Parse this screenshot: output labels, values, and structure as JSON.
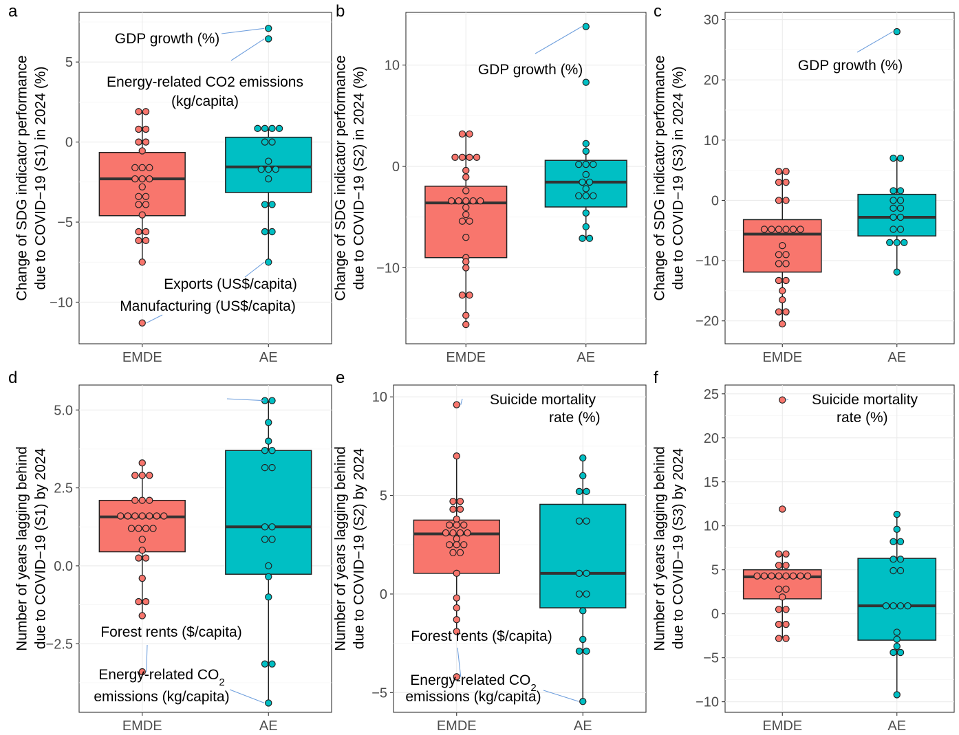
{
  "colors": {
    "EMDE": "#f8766d",
    "AE": "#00bfc4"
  },
  "chart_data": [
    {
      "panel": "a",
      "type": "box",
      "categories": [
        "EMDE",
        "AE"
      ],
      "ylabel": [
        "Change of SDG indicator performance",
        "due to COVID−19 (S1) in 2024 (%)"
      ],
      "ylim": [
        -12.6,
        8.1
      ],
      "yticks": [
        -10,
        -5,
        0,
        5
      ],
      "ytick_labels": [
        "−10",
        "−5",
        "0",
        "5"
      ],
      "boxes": [
        {
          "group": "EMDE",
          "q1": -4.6,
          "median": -2.3,
          "q3": -0.65,
          "whisker_low": -7.5,
          "whisker_high": 1.9
        },
        {
          "group": "AE",
          "q1": -3.15,
          "median": -1.55,
          "q3": 0.3,
          "whisker_low": -7.5,
          "whisker_high": 0.85
        }
      ],
      "points": {
        "EMDE": [
          1.9,
          1.9,
          0.8,
          0.8,
          0,
          0,
          -0.55,
          -1.6,
          -1.6,
          -1.6,
          -2.3,
          -2.3,
          -2.3,
          -2.8,
          -3.4,
          -3.4,
          -3.9,
          -3.9,
          -4.55,
          -5.6,
          -5.6,
          -6.15,
          -6.15,
          -7.5,
          -11.3
        ],
        "AE": [
          7.1,
          6.45,
          0.85,
          0.85,
          0.85,
          0.85,
          0,
          0,
          -1.2,
          -1.7,
          -1.7,
          -1.7,
          -2.3,
          -3.9,
          -3.9,
          -5.6,
          -5.6,
          -7.5
        ]
      },
      "annotations": [
        {
          "text": "GDP growth (%)",
          "group": "AE",
          "y": 7.1
        },
        {
          "text": "Energy-related CO2 emissions",
          "text2": "(kg/capita)",
          "group": "AE",
          "y": 6.45
        },
        {
          "text": "Exports (US$/capita)",
          "group": "AE",
          "y": -7.5
        },
        {
          "text": "Manufacturing (US$/capita)",
          "group": "EMDE",
          "y": -11.3
        }
      ]
    },
    {
      "panel": "b",
      "type": "box",
      "categories": [
        "EMDE",
        "AE"
      ],
      "ylabel": [
        "Change of SDG indicator performance",
        "due to COVID−19 (S2) in 2024 (%)"
      ],
      "ylim": [
        -17.5,
        15.2
      ],
      "yticks": [
        -10,
        0,
        10
      ],
      "ytick_labels": [
        "−10",
        "0",
        "10"
      ],
      "boxes": [
        {
          "group": "EMDE",
          "q1": -9.0,
          "median": -3.6,
          "q3": -1.95,
          "whisker_low": -15.6,
          "whisker_high": 3.2
        },
        {
          "group": "AE",
          "q1": -4.0,
          "median": -1.55,
          "q3": 0.6,
          "whisker_low": -7.1,
          "whisker_high": 2.25
        }
      ],
      "points": {
        "EMDE": [
          3.2,
          3.2,
          0.9,
          0.9,
          0.9,
          0.9,
          -0.4,
          -1.05,
          -2.4,
          -3.4,
          -3.4,
          -3.4,
          -3.4,
          -3.4,
          -4.05,
          -4.75,
          -5.4,
          -5.4,
          -7.0,
          -9.0,
          -9.4,
          -10.0,
          -12.7,
          -12.7,
          -14.7,
          -15.6
        ],
        "AE": [
          13.8,
          8.3,
          2.25,
          1.5,
          0.2,
          0.2,
          0.2,
          -0.8,
          -1.55,
          -1.55,
          -2.2,
          -2.9,
          -2.9,
          -2.9,
          -4.6,
          -5.95,
          -7.1,
          -7.1
        ]
      },
      "annotations": [
        {
          "text": "GDP growth (%)",
          "group": "AE",
          "y": 13.8
        }
      ]
    },
    {
      "panel": "c",
      "type": "box",
      "categories": [
        "EMDE",
        "AE"
      ],
      "ylabel": [
        "Change of SDG indicator performance",
        "due to COVID−19 (S3) in 2024 (%)"
      ],
      "ylim": [
        -23.8,
        31.2
      ],
      "yticks": [
        -20,
        -10,
        0,
        10,
        20,
        30
      ],
      "ytick_labels": [
        "−20",
        "−10",
        "0",
        "10",
        "20",
        "30"
      ],
      "boxes": [
        {
          "group": "EMDE",
          "q1": -11.9,
          "median": -5.6,
          "q3": -3.2,
          "whisker_low": -20.5,
          "whisker_high": 4.8
        },
        {
          "group": "AE",
          "q1": -5.9,
          "median": -2.8,
          "q3": 1.0,
          "whisker_low": -11.9,
          "whisker_high": 7.0
        }
      ],
      "points": {
        "EMDE": [
          4.8,
          4.8,
          3.0,
          3.0,
          0,
          0,
          -4.8,
          -4.8,
          -4.8,
          -4.8,
          -4.8,
          -4.8,
          -7.5,
          -9.0,
          -9.0,
          -10.5,
          -10.5,
          -13.3,
          -13.3,
          -15.0,
          -16.5,
          -18.5,
          -18.5,
          -20.5
        ],
        "AE": [
          28.0,
          7.0,
          7.0,
          1.6,
          1.6,
          0,
          0,
          -1.3,
          -1.3,
          -2.8,
          -2.8,
          -4.8,
          -4.8,
          -7.0,
          -7.0,
          -7.0,
          -11.9
        ]
      },
      "annotations": [
        {
          "text": "GDP growth (%)",
          "group": "AE",
          "y": 28.0
        }
      ]
    },
    {
      "panel": "d",
      "type": "box",
      "categories": [
        "EMDE",
        "AE"
      ],
      "ylabel": [
        "Number of years lagging behind",
        "due to COVID−19 (S1) by 2024"
      ],
      "ylim": [
        -4.7,
        5.8
      ],
      "yticks": [
        -2.5,
        0,
        2.5,
        5
      ],
      "ytick_labels": [
        "−2.5",
        "0.0",
        "2.5",
        "5.0"
      ],
      "boxes": [
        {
          "group": "EMDE",
          "q1": 0.45,
          "median": 1.57,
          "q3": 2.1,
          "whisker_low": -1.6,
          "whisker_high": 3.3
        },
        {
          "group": "AE",
          "q1": -0.27,
          "median": 1.25,
          "q3": 3.7,
          "whisker_low": -4.4,
          "whisker_high": 5.3
        }
      ],
      "points": {
        "EMDE": [
          3.3,
          2.9,
          2.9,
          2.9,
          2.1,
          2.1,
          2.1,
          1.6,
          1.6,
          1.6,
          1.6,
          1.6,
          1.6,
          1.6,
          1.2,
          1.2,
          1.2,
          1.2,
          0.85,
          0.5,
          0.25,
          0.25,
          -0.4,
          -1.15,
          -1.15,
          -1.6,
          -3.4
        ],
        "AE": [
          5.3,
          5.3,
          4.6,
          4.0,
          3.7,
          3.7,
          3.15,
          3.15,
          1.25,
          1.25,
          0.85,
          0.85,
          0,
          -0.35,
          -1.0,
          -3.15,
          -3.15,
          -4.4
        ]
      },
      "annotations": [
        {
          "text": "Forest rents ($/capita)",
          "group": "EMDE",
          "y": -3.4
        },
        {
          "text": "Energy-related CO",
          "sub": "2",
          "text2": "emissions (kg/capita)",
          "group": "AE",
          "y": -4.4
        },
        {
          "text": "",
          "group": "AE",
          "y": 5.3
        }
      ]
    },
    {
      "panel": "e",
      "type": "box",
      "categories": [
        "EMDE",
        "AE"
      ],
      "ylabel": [
        "Number of years lagging behind",
        "due to COVID−19 (S2) by 2024"
      ],
      "ylim": [
        -6.0,
        10.6
      ],
      "yticks": [
        -5,
        0,
        5,
        10
      ],
      "ytick_labels": [
        "−5",
        "0",
        "5",
        "10"
      ],
      "boxes": [
        {
          "group": "EMDE",
          "q1": 1.05,
          "median": 3.05,
          "q3": 3.75,
          "whisker_low": -1.9,
          "whisker_high": 7.0
        },
        {
          "group": "AE",
          "q1": -0.7,
          "median": 1.05,
          "q3": 4.55,
          "whisker_low": -5.45,
          "whisker_high": 6.9
        }
      ],
      "points": {
        "EMDE": [
          9.6,
          7.0,
          4.7,
          4.7,
          4.3,
          4.3,
          3.8,
          3.5,
          3.5,
          3.5,
          3.1,
          3.1,
          3.1,
          3.1,
          2.8,
          2.5,
          2.5,
          2.5,
          2.1,
          2.1,
          1.05,
          -0.2,
          -0.7,
          -1.3,
          -1.9,
          -4.2
        ],
        "AE": [
          6.9,
          6.0,
          5.2,
          5.2,
          3.7,
          3.7,
          1.05,
          1.05,
          0,
          0,
          -0.85,
          -2.3,
          -2.9,
          -2.9,
          -5.45
        ]
      },
      "annotations": [
        {
          "text": "Suicide mortality",
          "text2": "rate (%)",
          "group": "EMDE",
          "y": 9.6
        },
        {
          "text": "Forest rents ($/capita)",
          "group": "EMDE",
          "y": -4.2
        },
        {
          "text": "Energy-related CO",
          "sub": "2",
          "text2": "emissions (kg/capita)",
          "group": "AE",
          "y": -5.45
        }
      ]
    },
    {
      "panel": "f",
      "type": "box",
      "categories": [
        "EMDE",
        "AE"
      ],
      "ylabel": [
        "Number of years lagging behind",
        "due to COVID−19 (S3) by 2024"
      ],
      "ylim": [
        -11.2,
        26.0
      ],
      "yticks": [
        -10,
        -5,
        0,
        5,
        10,
        15,
        20,
        25
      ],
      "ytick_labels": [
        "−10",
        "−5",
        "0",
        "5",
        "10",
        "15",
        "20",
        "25"
      ],
      "boxes": [
        {
          "group": "EMDE",
          "q1": 1.7,
          "median": 4.2,
          "q3": 5.0,
          "whisker_low": -2.8,
          "whisker_high": 6.8
        },
        {
          "group": "AE",
          "q1": -3.0,
          "median": 0.9,
          "q3": 6.3,
          "whisker_low": -9.2,
          "whisker_high": 11.3
        }
      ],
      "points": {
        "EMDE": [
          24.3,
          11.9,
          6.8,
          6.8,
          5.5,
          5.5,
          4.3,
          4.3,
          4.3,
          4.3,
          4.3,
          4.3,
          4.3,
          4.3,
          2.8,
          2.8,
          1.9,
          0.5,
          0.5,
          -1.2,
          -1.2,
          -2.8,
          -2.8
        ],
        "AE": [
          11.3,
          9.6,
          8.2,
          8.2,
          6.2,
          6.2,
          4.9,
          4.9,
          0.9,
          0.9,
          0.9,
          0.9,
          -2.1,
          -2.9,
          -3.7,
          -4.4,
          -4.4,
          -9.2
        ]
      },
      "annotations": [
        {
          "text": "Suicide mortality",
          "text2": "rate (%)",
          "group": "EMDE",
          "y": 24.3
        }
      ]
    }
  ]
}
